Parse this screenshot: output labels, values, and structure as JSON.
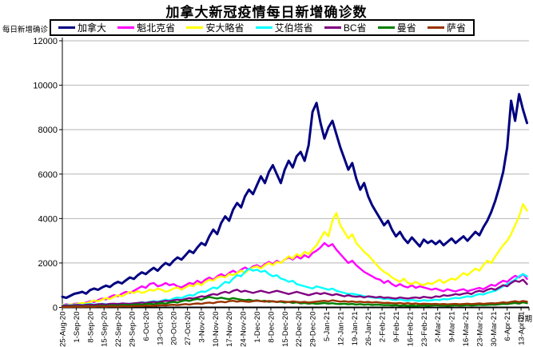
{
  "chart_data": {
    "type": "line",
    "title": "加拿大新冠疫情每日新增确诊数",
    "y_axis_title": "每日新增确诊",
    "x_axis_title": "日期",
    "grid": true,
    "legend_position": "top",
    "ylim": [
      0,
      12000
    ],
    "y_ticks": [
      0,
      2000,
      4000,
      6000,
      8000,
      10000,
      12000
    ],
    "x_tick_interval_days": 7,
    "sample_interval_days": 2,
    "days_total": 235,
    "x_tick_labels": [
      "25-Aug-20",
      "1-Sep-20",
      "8-Sep-20",
      "15-Sep-20",
      "22-Sep-20",
      "29-Sep-20",
      "6-Oct-20",
      "13-Oct-20",
      "20-Oct-20",
      "27-Oct-20",
      "3-Nov-20",
      "10-Nov-20",
      "17-Nov-20",
      "24-Nov-20",
      "1-Dec-20",
      "8-Dec-20",
      "15-Dec-20",
      "22-Dec-20",
      "29-Dec-20",
      "5-Jan-21",
      "12-Jan-21",
      "19-Jan-21",
      "26-Jan-21",
      "2-Feb-21",
      "9-Feb-21",
      "16-Feb-21",
      "23-Feb-21",
      "2-Mar-21",
      "9-Mar-21",
      "16-Mar-21",
      "23-Mar-21",
      "30-Mar-21",
      "6-Apr-21",
      "13-Apr-21"
    ],
    "gridline_color": "#b4b4b4",
    "series": [
      {
        "name": "加拿大",
        "key": "canada",
        "color": "#000080",
        "values": [
          480,
          430,
          520,
          610,
          650,
          700,
          620,
          780,
          850,
          790,
          900,
          980,
          920,
          1060,
          1150,
          1080,
          1220,
          1350,
          1280,
          1450,
          1580,
          1500,
          1650,
          1780,
          1650,
          1850,
          2000,
          1900,
          2100,
          2250,
          2150,
          2350,
          2550,
          2450,
          2700,
          2900,
          2800,
          3200,
          3500,
          3300,
          3800,
          4100,
          3900,
          4400,
          4700,
          4500,
          5000,
          5300,
          5100,
          5500,
          5900,
          5600,
          6100,
          6400,
          6000,
          5600,
          6200,
          6600,
          6300,
          6800,
          7000,
          6600,
          7300,
          8800,
          9200,
          8300,
          7600,
          8100,
          8400,
          7800,
          7200,
          6700,
          6200,
          6500,
          5800,
          5300,
          5600,
          5000,
          4600,
          4300,
          4000,
          3700,
          3900,
          3500,
          3200,
          3400,
          3100,
          2900,
          3150,
          2950,
          2750,
          3050,
          2900,
          3000,
          2850,
          3000,
          2800,
          2950,
          3100,
          2900,
          3050,
          3200,
          3000,
          3200,
          3400,
          3250,
          3600,
          3900,
          4300,
          4800,
          5400,
          6100,
          7200,
          9300,
          8400,
          9600,
          8900,
          8300
        ]
      },
      {
        "name": "魁北克省",
        "key": "quebec",
        "color": "#ff00ff",
        "values": [
          110,
          140,
          120,
          160,
          180,
          150,
          220,
          280,
          240,
          330,
          400,
          360,
          470,
          550,
          500,
          620,
          700,
          650,
          750,
          850,
          950,
          880,
          1050,
          1100,
          950,
          1000,
          1100,
          1000,
          1050,
          950,
          900,
          1000,
          1100,
          1050,
          1200,
          1100,
          1250,
          1350,
          1250,
          1400,
          1500,
          1400,
          1550,
          1650,
          1550,
          1700,
          1800,
          1700,
          1850,
          1900,
          1800,
          1950,
          2050,
          1950,
          2100,
          2000,
          2150,
          2250,
          2150,
          2300,
          2200,
          2350,
          2250,
          2450,
          2550,
          2700,
          2900,
          2750,
          2850,
          2600,
          2400,
          2200,
          2000,
          2100,
          1900,
          1750,
          1600,
          1500,
          1400,
          1300,
          1250,
          1100,
          1200,
          1050,
          950,
          1050,
          950,
          900,
          1000,
          880,
          950,
          900,
          850,
          800,
          850,
          780,
          730,
          820,
          760,
          720,
          780,
          820,
          730,
          780,
          830,
          880,
          820,
          920,
          1020,
          970,
          1100,
          1200,
          1150,
          1300,
          1420,
          1350,
          1500,
          1280
        ]
      },
      {
        "name": "安大略省",
        "key": "ontario",
        "color": "#ffff00",
        "values": [
          120,
          100,
          140,
          130,
          170,
          200,
          180,
          250,
          310,
          280,
          350,
          420,
          380,
          480,
          550,
          500,
          600,
          700,
          650,
          740,
          650,
          700,
          800,
          750,
          850,
          800,
          700,
          760,
          850,
          900,
          800,
          900,
          1000,
          950,
          1100,
          1000,
          1150,
          1250,
          1200,
          1350,
          1400,
          1350,
          1500,
          1450,
          1550,
          1650,
          1550,
          1700,
          1800,
          1850,
          1750,
          1900,
          2000,
          1900,
          2050,
          2000,
          2150,
          2300,
          2200,
          2400,
          2300,
          2500,
          2400,
          2600,
          2800,
          3100,
          3400,
          3200,
          3900,
          4250,
          3700,
          3400,
          3100,
          3300,
          2900,
          2700,
          2500,
          2350,
          2150,
          1950,
          1750,
          1600,
          1500,
          1350,
          1250,
          1150,
          1300,
          1100,
          1050,
          1150,
          1050,
          1000,
          1100,
          1050,
          1150,
          1250,
          1100,
          1200,
          1300,
          1250,
          1400,
          1550,
          1450,
          1600,
          1750,
          1650,
          1900,
          2100,
          2000,
          2300,
          2550,
          2800,
          3000,
          3300,
          3700,
          4100,
          4650,
          4350
        ]
      },
      {
        "name": "艾伯塔省",
        "key": "alberta",
        "color": "#00ffff",
        "values": [
          90,
          110,
          100,
          120,
          130,
          110,
          140,
          160,
          130,
          150,
          170,
          140,
          160,
          150,
          170,
          160,
          150,
          170,
          180,
          200,
          230,
          210,
          250,
          280,
          260,
          300,
          350,
          320,
          400,
          450,
          420,
          500,
          560,
          530,
          650,
          720,
          700,
          800,
          900,
          850,
          1000,
          1150,
          1100,
          1300,
          1450,
          1400,
          1600,
          1750,
          1650,
          1700,
          1600,
          1650,
          1500,
          1400,
          1450,
          1300,
          1250,
          1150,
          1200,
          1050,
          1000,
          950,
          900,
          850,
          950,
          900,
          850,
          800,
          850,
          750,
          700,
          650,
          600,
          620,
          580,
          550,
          500,
          480,
          450,
          430,
          420,
          380,
          400,
          350,
          330,
          360,
          320,
          300,
          340,
          310,
          290,
          330,
          300,
          320,
          350,
          330,
          380,
          360,
          400,
          430,
          410,
          460,
          500,
          480,
          550,
          600,
          580,
          650,
          700,
          750,
          850,
          950,
          1050,
          1150,
          1250,
          1400,
          1500,
          1400
        ]
      },
      {
        "name": "BC省",
        "key": "bc",
        "color": "#800080",
        "values": [
          70,
          90,
          80,
          100,
          110,
          90,
          120,
          130,
          110,
          140,
          150,
          130,
          160,
          170,
          150,
          180,
          170,
          160,
          180,
          200,
          220,
          200,
          230,
          250,
          230,
          270,
          300,
          280,
          320,
          350,
          330,
          380,
          420,
          400,
          450,
          500,
          480,
          550,
          600,
          570,
          650,
          700,
          650,
          750,
          800,
          700,
          750,
          700,
          650,
          700,
          750,
          700,
          650,
          700,
          750,
          700,
          650,
          600,
          650,
          700,
          650,
          600,
          550,
          600,
          650,
          600,
          650,
          600,
          550,
          600,
          550,
          500,
          550,
          500,
          480,
          500,
          450,
          500,
          480,
          450,
          480,
          430,
          450,
          420,
          400,
          450,
          420,
          400,
          430,
          450,
          420,
          480,
          450,
          430,
          500,
          480,
          550,
          520,
          550,
          600,
          570,
          620,
          650,
          600,
          700,
          750,
          700,
          800,
          850,
          800,
          900,
          1000,
          950,
          1100,
          1200,
          1150,
          1250,
          1050
        ]
      },
      {
        "name": "曼省",
        "key": "manitoba",
        "color": "#008000",
        "values": [
          30,
          40,
          35,
          50,
          45,
          35,
          55,
          60,
          45,
          70,
          80,
          60,
          90,
          100,
          80,
          110,
          120,
          100,
          130,
          140,
          120,
          150,
          170,
          140,
          180,
          200,
          170,
          220,
          250,
          220,
          280,
          320,
          290,
          350,
          380,
          350,
          420,
          470,
          430,
          400,
          440,
          400,
          370,
          420,
          380,
          350,
          320,
          350,
          300,
          320,
          280,
          300,
          250,
          280,
          240,
          260,
          220,
          250,
          200,
          230,
          180,
          200,
          170,
          190,
          160,
          180,
          200,
          170,
          190,
          160,
          150,
          170,
          140,
          160,
          130,
          150,
          120,
          140,
          110,
          130,
          120,
          100,
          110,
          90,
          100,
          80,
          95,
          75,
          90,
          70,
          85,
          95,
          80,
          90,
          100,
          85,
          95,
          80,
          90,
          100,
          85,
          95,
          110,
          90,
          100,
          120,
          105,
          115,
          130,
          120,
          140,
          160,
          150,
          180,
          200,
          170,
          230,
          190
        ]
      },
      {
        "name": "萨省",
        "key": "saskatchewan",
        "color": "#993300",
        "values": [
          20,
          30,
          25,
          35,
          30,
          25,
          40,
          35,
          30,
          45,
          40,
          35,
          50,
          45,
          40,
          55,
          50,
          45,
          60,
          70,
          60,
          80,
          75,
          65,
          90,
          100,
          85,
          110,
          120,
          100,
          130,
          150,
          130,
          160,
          180,
          160,
          200,
          220,
          190,
          240,
          260,
          230,
          280,
          300,
          260,
          290,
          270,
          250,
          280,
          300,
          280,
          260,
          290,
          270,
          250,
          280,
          260,
          240,
          270,
          250,
          230,
          250,
          220,
          240,
          260,
          280,
          300,
          270,
          320,
          290,
          260,
          280,
          250,
          270,
          240,
          260,
          230,
          250,
          220,
          240,
          220,
          200,
          210,
          190,
          180,
          200,
          170,
          190,
          160,
          180,
          150,
          170,
          160,
          150,
          160,
          140,
          155,
          135,
          150,
          160,
          140,
          155,
          170,
          150,
          165,
          180,
          160,
          175,
          190,
          180,
          200,
          230,
          210,
          250,
          280,
          240,
          290,
          260
        ]
      }
    ]
  }
}
